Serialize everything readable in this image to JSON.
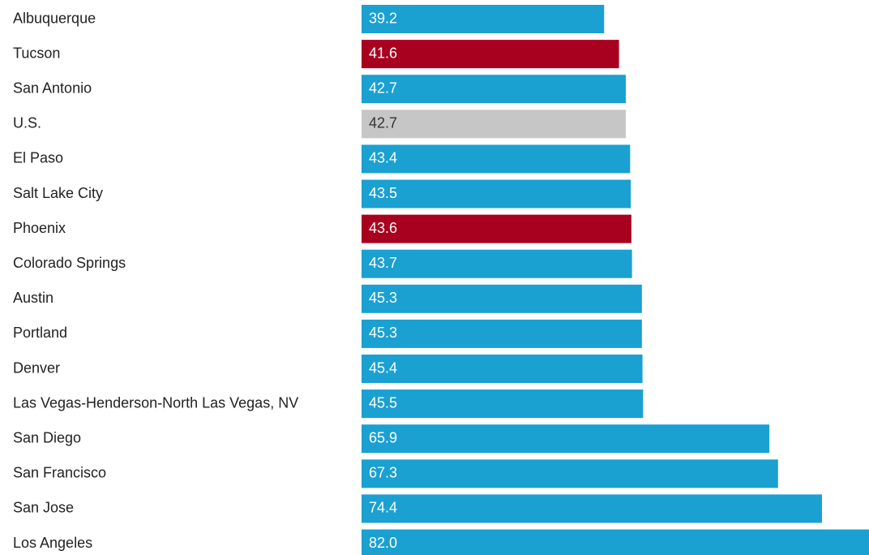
{
  "chart_data": {
    "type": "bar",
    "orientation": "horizontal",
    "categories": [
      "Albuquerque",
      "Tucson",
      "San Antonio",
      "U.S.",
      "El Paso",
      "Salt Lake City",
      "Phoenix",
      "Colorado Springs",
      "Austin",
      "Portland",
      "Denver",
      "Las Vegas-Henderson-North Las Vegas, NV",
      "San Diego",
      "San Francisco",
      "San Jose",
      "Los Angeles"
    ],
    "values": [
      39.2,
      41.6,
      42.7,
      42.7,
      43.4,
      43.5,
      43.6,
      43.7,
      45.3,
      45.3,
      45.4,
      45.5,
      65.9,
      67.3,
      74.4,
      82.0
    ],
    "value_labels": [
      "39.2",
      "41.6",
      "42.7",
      "42.7",
      "43.4",
      "43.5",
      "43.6",
      "43.7",
      "45.3",
      "45.3",
      "45.4",
      "45.5",
      "65.9",
      "67.3",
      "74.4",
      "82.0"
    ],
    "colors": [
      "#1aa0d1",
      "#a8001f",
      "#1aa0d1",
      "#c6c6c6",
      "#1aa0d1",
      "#1aa0d1",
      "#a8001f",
      "#1aa0d1",
      "#1aa0d1",
      "#1aa0d1",
      "#1aa0d1",
      "#1aa0d1",
      "#1aa0d1",
      "#1aa0d1",
      "#1aa0d1",
      "#1aa0d1"
    ]
  }
}
